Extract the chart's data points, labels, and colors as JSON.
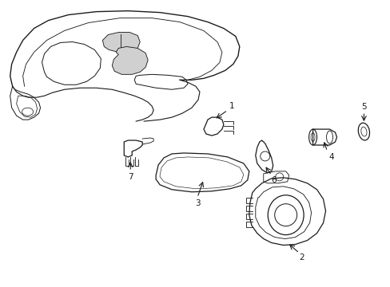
{
  "background_color": "#ffffff",
  "line_color": "#1a1a1a",
  "line_width": 0.9,
  "fig_width": 4.89,
  "fig_height": 3.6,
  "dpi": 100
}
